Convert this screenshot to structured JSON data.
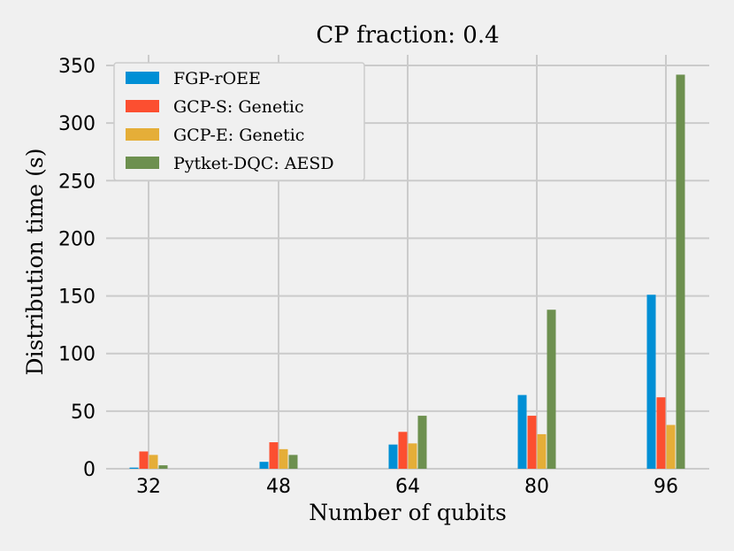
{
  "chart_data": {
    "type": "bar",
    "title": "CP fraction: 0.4",
    "xlabel": "Number of qubits",
    "ylabel": "Distribution time (s)",
    "categories": [
      "32",
      "48",
      "64",
      "80",
      "96"
    ],
    "ylim": [
      0,
      360
    ],
    "yticks": [
      "0",
      "50",
      "100",
      "150",
      "200",
      "250",
      "300",
      "350"
    ],
    "grid": true,
    "legend_position": "top-left",
    "series": [
      {
        "name": "FGP-rOEE",
        "color": "#008fd5",
        "values": [
          1,
          6,
          21,
          64,
          151
        ]
      },
      {
        "name": "GCP-S: Genetic",
        "color": "#fc4f30",
        "values": [
          15,
          23,
          32,
          46,
          62
        ]
      },
      {
        "name": "GCP-E: Genetic",
        "color": "#e5ae38",
        "values": [
          12,
          17,
          22,
          30,
          38
        ]
      },
      {
        "name": "Pytket-DQC: AESD",
        "color": "#6d904f",
        "values": [
          3,
          12,
          46,
          138,
          342
        ]
      }
    ]
  }
}
